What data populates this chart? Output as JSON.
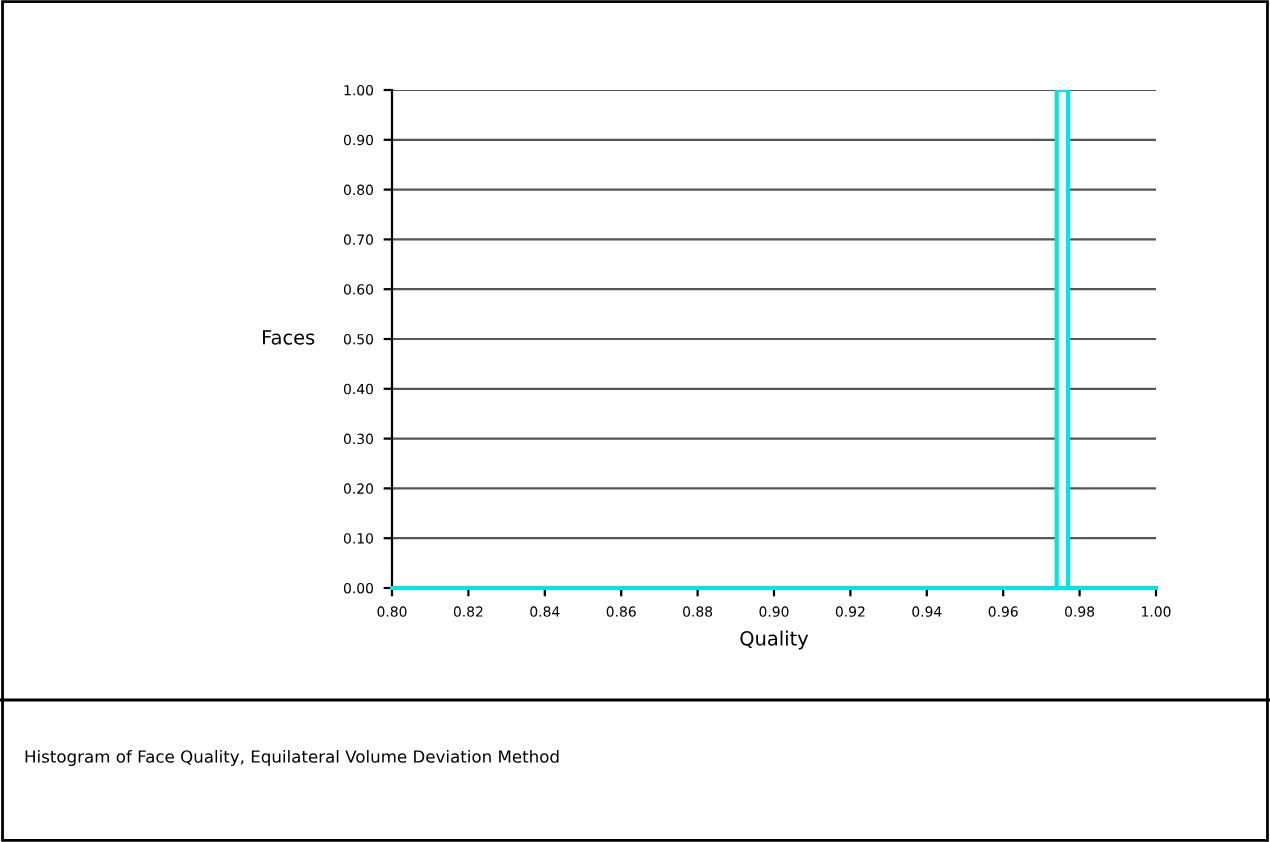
{
  "chart_data": {
    "type": "histogram",
    "xlabel": "Quality",
    "ylabel": "Faces",
    "annotations": [
      "Histogram of Face Quality, Equilateral Volume Deviation Method"
    ],
    "bins": [
      0.974,
      0.977
    ],
    "values": [
      1
    ],
    "color": "#00e5e5",
    "xlim": [
      0.8,
      1.0
    ],
    "ylim": [
      0,
      1.0
    ],
    "xticks": [
      {
        "value": 0.8,
        "label": "0.80"
      },
      {
        "value": 0.82,
        "label": "0.82"
      },
      {
        "value": 0.84,
        "label": "0.84"
      },
      {
        "value": 0.86,
        "label": "0.86"
      },
      {
        "value": 0.88,
        "label": "0.88"
      },
      {
        "value": 0.9,
        "label": "0.90"
      },
      {
        "value": 0.92,
        "label": "0.92"
      },
      {
        "value": 0.94,
        "label": "0.94"
      },
      {
        "value": 0.96,
        "label": "0.96"
      },
      {
        "value": 0.98,
        "label": "0.98"
      },
      {
        "value": 1.0,
        "label": "1.00"
      }
    ],
    "yticks": [
      {
        "value": 0,
        "label": "0.00"
      },
      {
        "value": 0.1,
        "label": "0.10"
      },
      {
        "value": 0.2,
        "label": "0.20"
      },
      {
        "value": 0.3,
        "label": "0.30"
      },
      {
        "value": 0.4,
        "label": "0.40"
      },
      {
        "value": 0.5,
        "label": "0.50"
      },
      {
        "value": 0.6,
        "label": "0.60"
      },
      {
        "value": 0.7,
        "label": "0.70"
      },
      {
        "value": 0.8,
        "label": "0.80"
      },
      {
        "value": 0.9,
        "label": "0.90"
      },
      {
        "value": 1.0,
        "label": "1.00"
      }
    ],
    "grid": "y"
  }
}
